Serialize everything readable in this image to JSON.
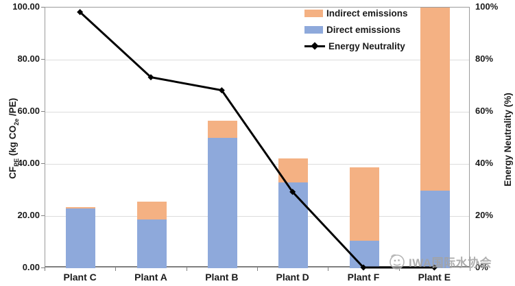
{
  "chart_data": {
    "type": "bar",
    "subtype": "stacked-bar-with-line-combo",
    "categories": [
      "Plant C",
      "Plant A",
      "Plant B",
      "Plant D",
      "Plant F",
      "Plant E"
    ],
    "series": [
      {
        "name": "Direct emissions",
        "type": "bar",
        "stacked": true,
        "color": "#8EA9DB",
        "axis": "left",
        "values": [
          23.0,
          18.6,
          50.0,
          33.0,
          10.4,
          29.8
        ]
      },
      {
        "name": "Indirect emissions",
        "type": "bar",
        "stacked": true,
        "color": "#F4B183",
        "axis": "left",
        "values": [
          0.5,
          7.0,
          6.6,
          9.1,
          28.4,
          70.2
        ]
      },
      {
        "name": "Energy Neutrality",
        "type": "line",
        "color": "#000000",
        "marker": "diamond",
        "axis": "right",
        "values": [
          98,
          73,
          68,
          29,
          0,
          0
        ]
      }
    ],
    "note_bar_clipped": "Plant E stacked bar reaches the top of the plot (clipped at axis max 100)",
    "left_axis": {
      "title_p1": "CF",
      "title_s1": "PE",
      "title_p2": " (kg CO",
      "title_s2": "2e",
      "title_p3": " /PE)",
      "min": 0,
      "max": 100,
      "step": 20,
      "ticks": [
        "0.00",
        "20.00",
        "40.00",
        "60.00",
        "80.00",
        "100.00"
      ]
    },
    "right_axis": {
      "title": "Energy Neutrality (%)",
      "min": 0,
      "max": 100,
      "step": 20,
      "ticks": [
        "0%",
        "20%",
        "40%",
        "60%",
        "80%",
        "100%"
      ]
    },
    "grid": "horizontal",
    "legend_position": "top-right-inside",
    "legend": {
      "items": [
        {
          "label": "Indirect emissions",
          "swatch": "orange-rect"
        },
        {
          "label": "Direct emissions",
          "swatch": "blue-rect"
        },
        {
          "label": "Energy Neutrality",
          "swatch": "black-line-diamond"
        }
      ]
    }
  },
  "watermark": {
    "text": "IWA国际水协会",
    "color": "#a3a3a3"
  }
}
